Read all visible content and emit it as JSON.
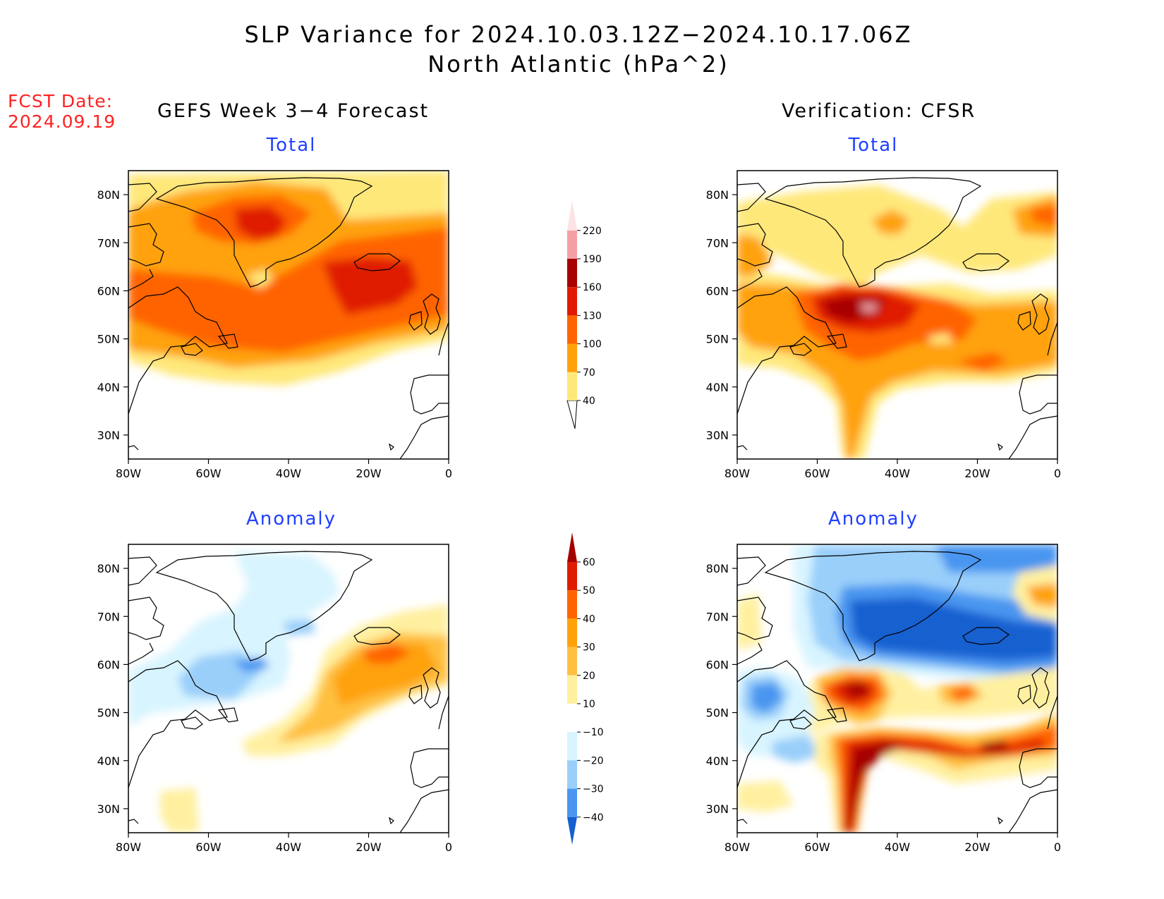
{
  "title": {
    "line1": "SLP Variance for 2024.10.03.12Z−2024.10.17.06Z",
    "line2": "North Atlantic (hPa^2)"
  },
  "fcst": {
    "line1": "FCST Date:",
    "line2": "2024.09.19"
  },
  "columns": {
    "left": "GEFS Week 3−4 Forecast",
    "right": "Verification: CFSR"
  },
  "panels": {
    "top_left": "Total",
    "top_right": "Total",
    "bottom_left": "Anomaly",
    "bottom_right": "Anomaly"
  },
  "axes": {
    "lat": [
      "80N",
      "70N",
      "60N",
      "50N",
      "40N",
      "30N"
    ],
    "lon": [
      "80W",
      "60W",
      "40W",
      "20W",
      "0"
    ],
    "lat_range": [
      25,
      85
    ],
    "lon_range": [
      -80,
      0
    ]
  },
  "colorbar_total": {
    "labels": [
      "40",
      "70",
      "100",
      "130",
      "160",
      "190",
      "220"
    ],
    "colors": [
      "#ffe87a",
      "#ffa20a",
      "#ff6400",
      "#e01a05",
      "#a80000",
      "#f2a0a5",
      "#fde3e5"
    ]
  },
  "colorbar_anomaly": {
    "labels": [
      "60",
      "50",
      "40",
      "30",
      "20",
      "10",
      "−10",
      "−20",
      "−30",
      "−40"
    ],
    "colors": [
      "#a50000",
      "#dd1c00",
      "#ff6400",
      "#ffa20a",
      "#ffc040",
      "#fff0a0",
      "#ffffff",
      "#d8f4ff",
      "#9acffa",
      "#4a96f0",
      "#1460d0"
    ]
  }
}
